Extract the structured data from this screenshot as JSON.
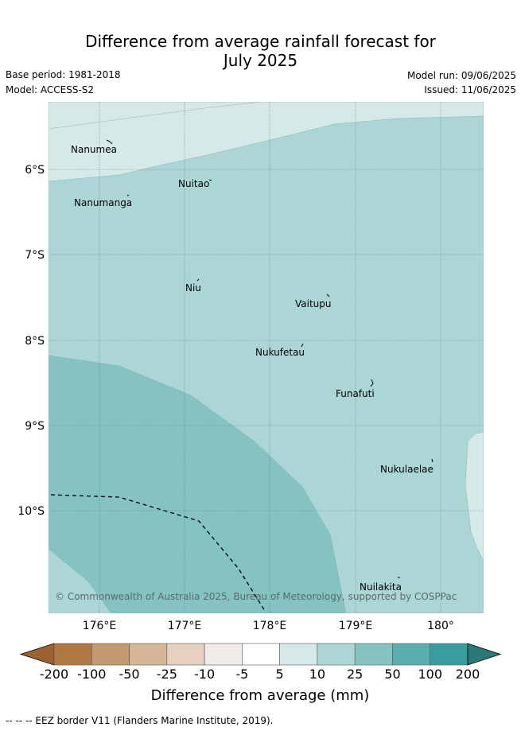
{
  "header": {
    "title_line1": "Difference from average rainfall forecast for",
    "title_line2": "July 2025",
    "base_period": "Base period: 1981-2018",
    "model": "Model: ACCESS-S2",
    "model_run": "Model run: 09/06/2025",
    "issued": "Issued: 11/06/2025"
  },
  "map": {
    "places": [
      "Nanumea",
      "Nuitao",
      "Nanumanga",
      "Niu",
      "Vaitupu",
      "Nukufetau",
      "Funafuti",
      "Nukulaelae",
      "Nuilakita"
    ],
    "lat_labels": [
      "6°S",
      "7°S",
      "8°S",
      "9°S",
      "10°S"
    ],
    "lon_labels": [
      "176°E",
      "177°E",
      "178°E",
      "179°E",
      "180°"
    ],
    "copyright": "© Commonwealth of Australia 2025, Bureau of Meteorology, supported by COSPPac",
    "region_colors": {
      "light": "#d5e9e8",
      "mid": "#acd6d5",
      "dark": "#84c3c1"
    }
  },
  "colorbar": {
    "title": "Difference from average (mm)",
    "ticks": [
      "-200",
      "-100",
      "-50",
      "-25",
      "-10",
      "-5",
      "5",
      "10",
      "25",
      "50",
      "100",
      "200"
    ],
    "colors": [
      "#9c6331",
      "#b07942",
      "#c39a72",
      "#d5b697",
      "#e6d1bf",
      "#efebe8",
      "#ffffff",
      "#d5e9e8",
      "#acd6d5",
      "#84c3c1",
      "#5aafae",
      "#379e9d",
      "#2a7877"
    ]
  },
  "footnote": "-- -- -- EEZ border V11 (Flanders Marine Institute, 2019)."
}
